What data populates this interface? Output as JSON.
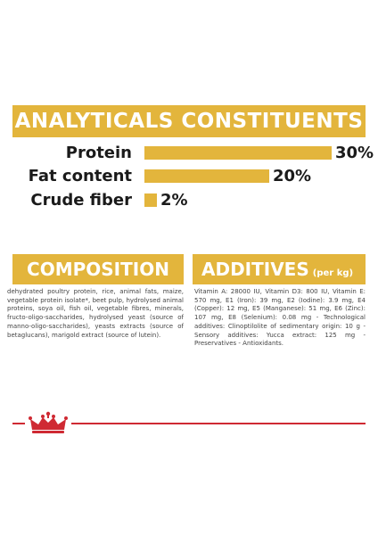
{
  "analytics": {
    "title": "ANALYTICALS CONSTITUENTS",
    "rows": [
      {
        "label": "Protein",
        "value": "30%",
        "percent": 30
      },
      {
        "label": "Fat content",
        "value": "20%",
        "percent": 20
      },
      {
        "label": "Crude fiber",
        "value": "2%",
        "percent": 2
      }
    ]
  },
  "composition": {
    "title": "COMPOSITION",
    "text": "dehydrated poultry protein, rice, animal fats, maize, vegetable protein isolate*, beet pulp, hydrolysed animal proteins, soya oil, fish oil, vegetable fibres, minerals, fructo-oligo-saccharides, hydrolysed yeast (source of manno-oligo-saccharides), yeasts extracts (source of betaglucans), marigold extract (source of lutein)."
  },
  "additives": {
    "title": "ADDITIVES",
    "unit": "(per kg)",
    "text": "Vitamin A: 28000 IU, Vitamin D3: 800 IU, Vitamin E: 570 mg, E1 (Iron): 39 mg, E2 (Iodine): 3.9 mg, E4 (Copper): 12 mg, E5 (Manganese): 51 mg, E6 (Zinc): 107 mg, E8 (Selenium): 0.08 mg - Technological additives: Clinoptilolite of sedimentary origin: 10 g - Sensory additives: Yucca extract: 125 mg - Preservatives - Antioxidants."
  },
  "colors": {
    "accent": "#e3b53c",
    "brand_red": "#cf2a33",
    "text_dark": "#1a1a1a",
    "text_body": "#444444"
  },
  "logo": {
    "icon": "crown-icon"
  }
}
